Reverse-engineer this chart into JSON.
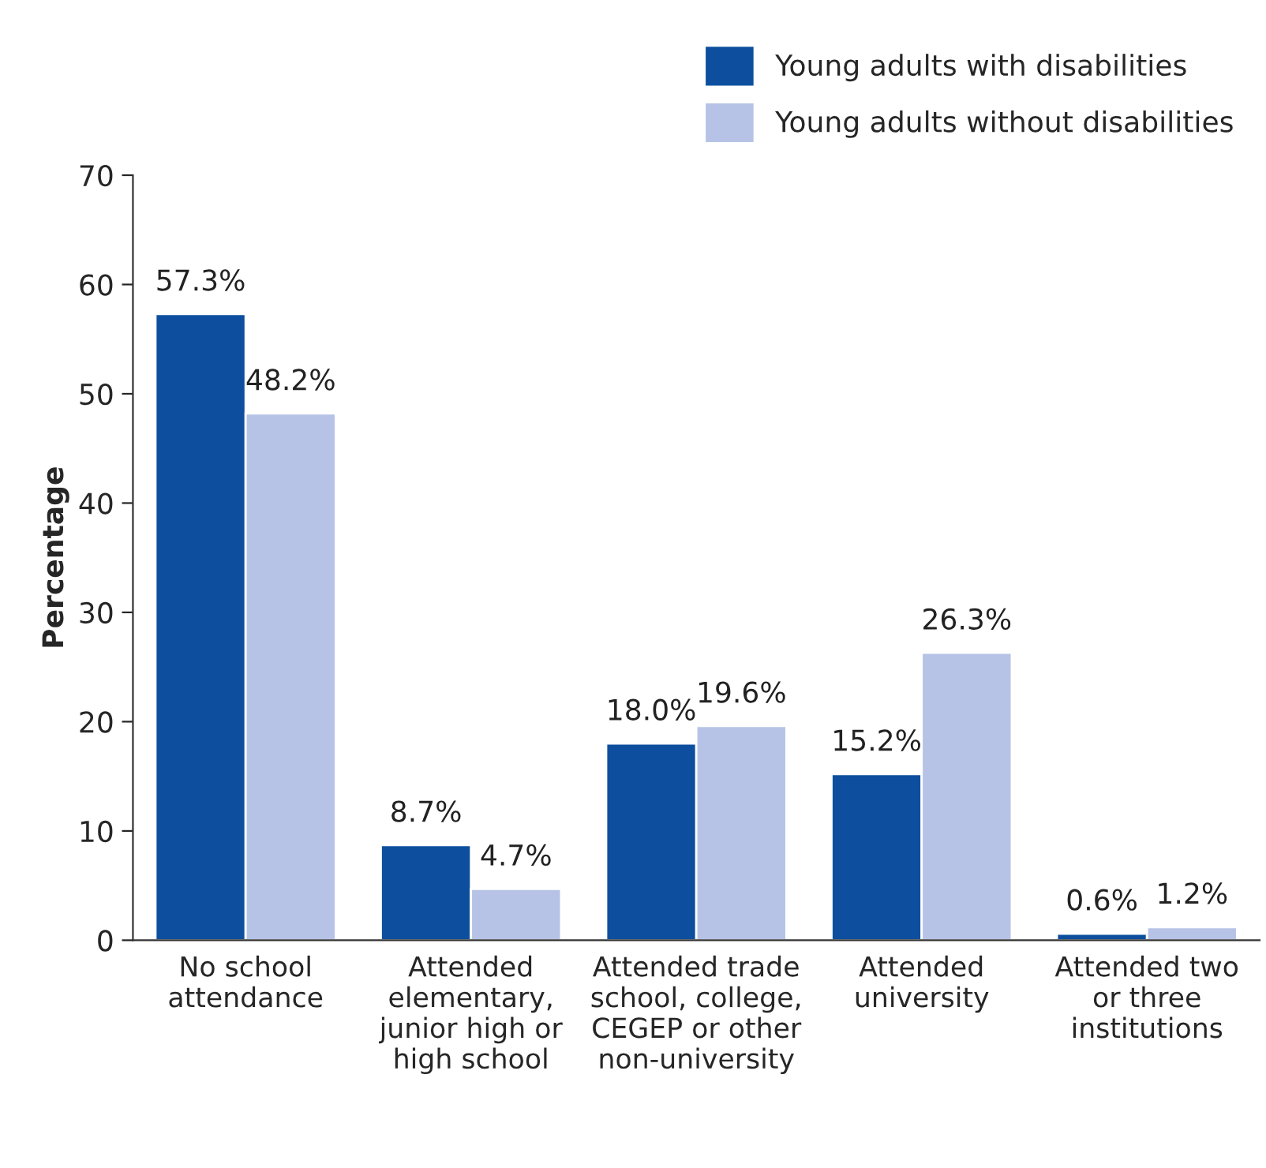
{
  "chart_data": {
    "type": "bar",
    "ylabel": "Percentage",
    "categories": [
      "No school\nattendance",
      "Attended\nelementary,\njunior high or\nhigh school",
      "Attended trade\nschool, college,\nCEGEP or other\nnon-university",
      "Attended\nuniversity",
      "Attended two\nor three\ninstitutions"
    ],
    "series": [
      {
        "name": "Young adults with disabilities",
        "color": "#0d4f9e",
        "values": [
          57.3,
          8.7,
          18.0,
          15.2,
          0.6
        ],
        "value_labels": [
          "57.3%",
          "8.7%",
          "18.0%",
          "15.2%",
          "0.6%"
        ]
      },
      {
        "name": "Young adults without disabilities",
        "color": "#b7c3e6",
        "values": [
          48.2,
          4.7,
          19.6,
          26.3,
          1.2
        ],
        "value_labels": [
          "48.2%",
          "4.7%",
          "19.6%",
          "26.3%",
          "1.2%"
        ]
      }
    ],
    "ylim": [
      0,
      70
    ],
    "yticks": [
      0,
      10,
      20,
      30,
      40,
      50,
      60,
      70
    ],
    "grid": false,
    "legend": "top right"
  }
}
